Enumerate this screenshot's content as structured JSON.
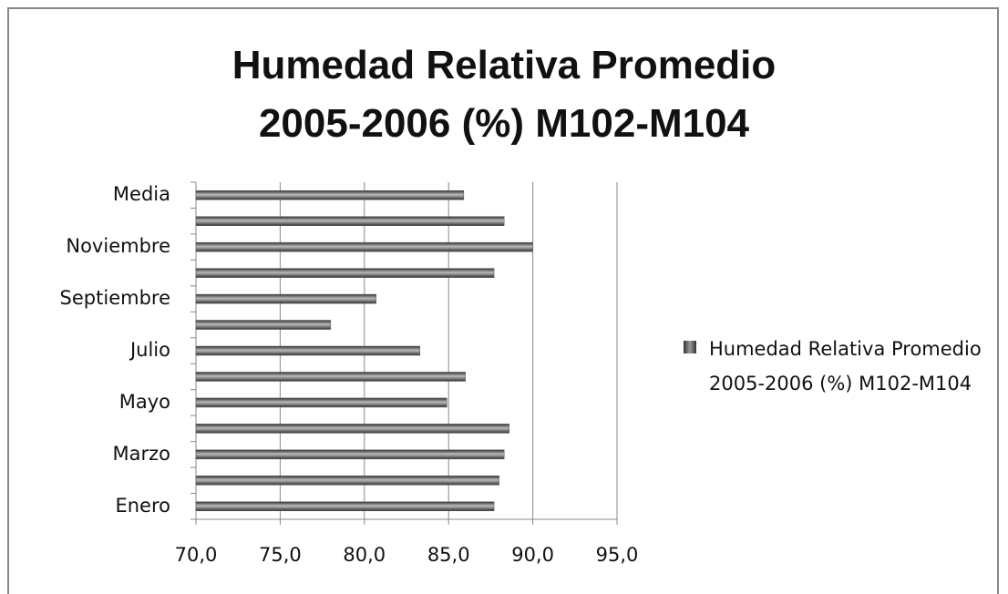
{
  "chart_data": {
    "type": "bar",
    "orientation": "horizontal",
    "title": "Humedad Relativa Promedio 2005-2006 (%) M102-M104",
    "categories": [
      "Enero",
      null,
      "Marzo",
      null,
      "Mayo",
      null,
      "Julio",
      null,
      "Septiembre",
      null,
      "Noviembre",
      null,
      "Media"
    ],
    "series": [
      {
        "name": "Humedad Relativa Promedio 2005-2006 (%) M102-M104",
        "color": "#555555",
        "values": [
          87.7,
          88.0,
          88.3,
          88.6,
          84.9,
          86.0,
          83.3,
          78.0,
          80.7,
          87.7,
          90.0,
          88.3,
          85.9
        ]
      }
    ],
    "xlim": [
      70,
      95
    ],
    "xticks": [
      {
        "value": 70,
        "label": "70,0"
      },
      {
        "value": 75,
        "label": "75,0"
      },
      {
        "value": 80,
        "label": "80,0"
      },
      {
        "value": 85,
        "label": "85,0"
      },
      {
        "value": 90,
        "label": "90,0"
      },
      {
        "value": 95,
        "label": "95,0"
      }
    ],
    "grid": true,
    "legend": "right"
  }
}
